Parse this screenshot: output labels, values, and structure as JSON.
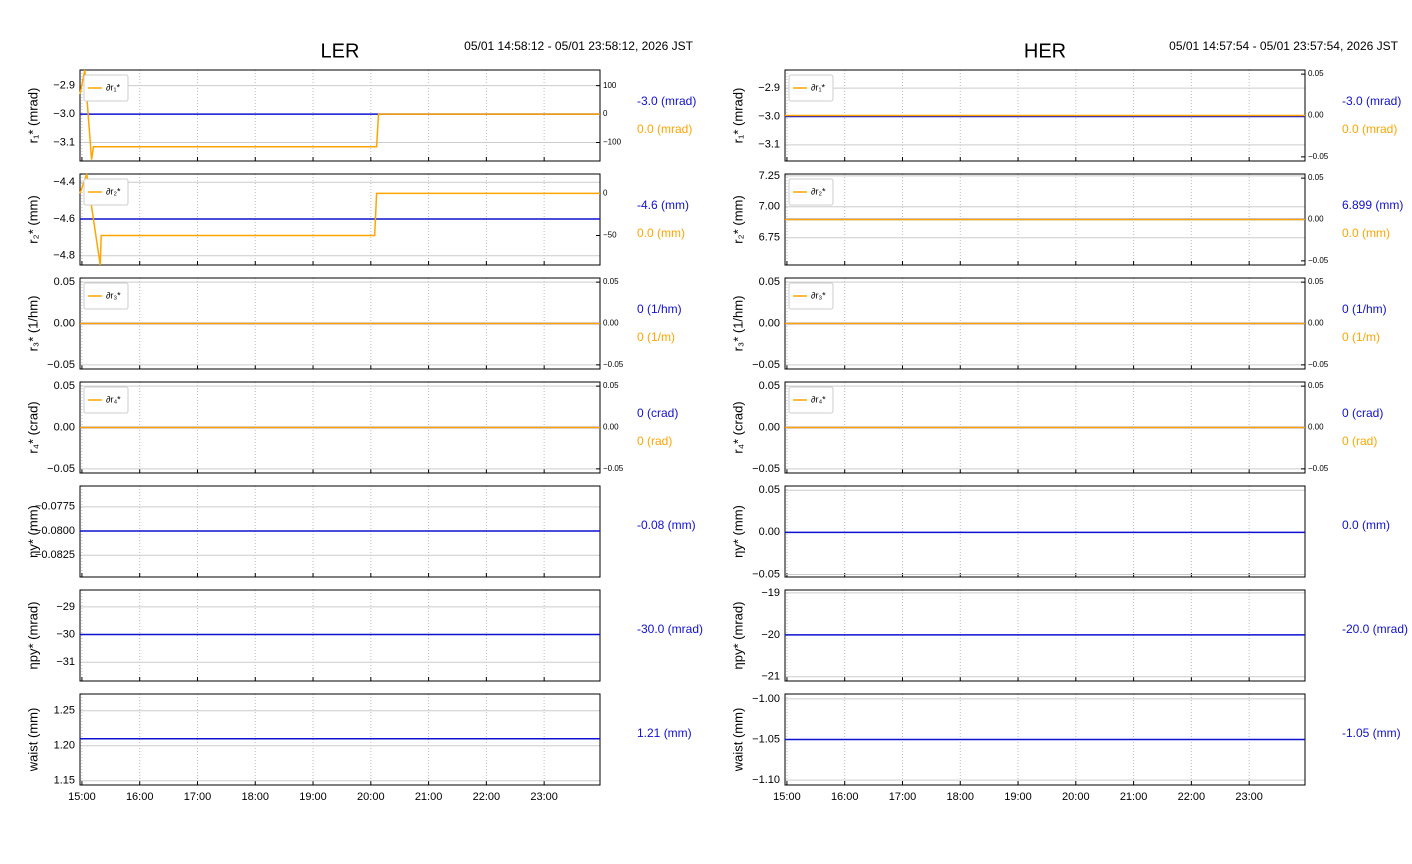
{
  "chart_data": [
    {
      "type": "line",
      "title": "LER",
      "subtitle": "05/01 14:58:12 - 05/01 23:58:12, 2026 JST",
      "xlim": [
        "14:58",
        "23:58"
      ],
      "xticks": [
        "15:00",
        "16:00",
        "17:00",
        "18:00",
        "19:00",
        "20:00",
        "21:00",
        "22:00",
        "23:00"
      ],
      "grid": true,
      "legend": "upper left",
      "panels": [
        {
          "ylabel": "r₁* (mrad)",
          "ylim": [
            -3.165,
            -2.845
          ],
          "yticks": [
            {
              "value": -3.1,
              "label": "−3.1"
            },
            {
              "value": -3.0,
              "label": "−3.0"
            },
            {
              "value": -2.9,
              "label": "−2.9"
            }
          ],
          "y2lim": [
            -165,
            155
          ],
          "y2ticks": [
            {
              "value": -100,
              "label": "−100"
            },
            0,
            100
          ],
          "series": [
            {
              "color": "#1010d0",
              "x": [
                "14:58",
                "23:58"
              ],
              "values": [
                -3.0,
                -3.0
              ]
            },
            {
              "name": "∂r₁*",
              "color": "#ffa500",
              "axis": "y2",
              "x": [
                "14:58",
                "15:03",
                "15:10",
                "15:12",
                "20:06",
                "20:08",
                "23:58"
              ],
              "values": [
                70,
                155,
                -160,
                -115,
                -115,
                0,
                0
              ]
            }
          ],
          "annotations": [
            {
              "text": "-3.0 (mrad)",
              "color": "#1010d0"
            },
            {
              "text": "0.0 (mrad)",
              "color": "#ffa500"
            }
          ]
        },
        {
          "ylabel": "r₂* (mm)",
          "ylim": [
            -4.85,
            -4.355
          ],
          "yticks": [
            {
              "value": -4.8,
              "label": "−4.8"
            },
            {
              "value": -4.6,
              "label": "−4.6"
            },
            {
              "value": -4.4,
              "label": "−4.4"
            }
          ],
          "y2lim": [
            -85,
            23
          ],
          "y2ticks": [
            {
              "value": -50,
              "label": "−50"
            },
            0
          ],
          "series": [
            {
              "color": "#1010d0",
              "x": [
                "14:58",
                "23:58"
              ],
              "values": [
                -4.6,
                -4.6
              ]
            },
            {
              "name": "∂r₂*",
              "color": "#ffa500",
              "axis": "y2",
              "x": [
                "14:58",
                "15:05",
                "15:19",
                "15:20",
                "20:04",
                "20:06",
                "23:58"
              ],
              "values": [
                0,
                23,
                -85,
                -50,
                -50,
                0,
                0
              ]
            }
          ],
          "annotations": [
            {
              "text": "-4.6 (mm)",
              "color": "#1010d0"
            },
            {
              "text": "0.0 (mm)",
              "color": "#ffa500"
            }
          ]
        },
        {
          "ylabel": "r₃* (1/hm)",
          "ylim": [
            -0.055,
            0.055
          ],
          "yticks": [
            {
              "value": -0.05,
              "label": "−0.05"
            },
            {
              "value": 0,
              "label": "0.00"
            },
            0.05
          ],
          "y2lim": [
            -0.055,
            0.055
          ],
          "y2ticks": [
            {
              "value": -0.05,
              "label": "−0.05"
            },
            {
              "value": 0,
              "label": "0.00"
            },
            0.05
          ],
          "series": [
            {
              "color": "#1010d0",
              "x": [
                "14:58",
                "23:58"
              ],
              "values": [
                0,
                0
              ]
            },
            {
              "name": "∂r₃*",
              "color": "#ffa500",
              "axis": "y2",
              "x": [
                "14:58",
                "23:58"
              ],
              "values": [
                0,
                0
              ]
            }
          ],
          "annotations": [
            {
              "text": "0 (1/hm)",
              "color": "#1010d0"
            },
            {
              "text": "0 (1/m)",
              "color": "#ffa500"
            }
          ]
        },
        {
          "ylabel": "r₄* (crad)",
          "ylim": [
            -0.055,
            0.055
          ],
          "yticks": [
            {
              "value": -0.05,
              "label": "−0.05"
            },
            {
              "value": 0,
              "label": "0.00"
            },
            0.05
          ],
          "y2lim": [
            -0.055,
            0.055
          ],
          "y2ticks": [
            {
              "value": -0.05,
              "label": "−0.05"
            },
            {
              "value": 0,
              "label": "0.00"
            },
            0.05
          ],
          "series": [
            {
              "color": "#1010d0",
              "x": [
                "14:58",
                "23:58"
              ],
              "values": [
                0,
                0
              ]
            },
            {
              "name": "∂r₄*",
              "color": "#ffa500",
              "axis": "y2",
              "x": [
                "14:58",
                "23:58"
              ],
              "values": [
                0,
                0
              ]
            }
          ],
          "annotations": [
            {
              "text": "0 (crad)",
              "color": "#1010d0"
            },
            {
              "text": "0 (rad)",
              "color": "#ffa500"
            }
          ]
        },
        {
          "ylabel": "ηy* (mm)",
          "ylim": [
            -0.08475,
            -0.07535
          ],
          "yticks": [
            {
              "value": -0.0825,
              "label": "−0.0825"
            },
            {
              "value": -0.08,
              "label": "−0.0800"
            },
            {
              "value": -0.0775,
              "label": "−0.0775"
            }
          ],
          "series": [
            {
              "color": "#1010d0",
              "x": [
                "14:58",
                "23:58"
              ],
              "values": [
                -0.08,
                -0.08
              ]
            }
          ],
          "annotations": [
            {
              "text": "-0.08 (mm)",
              "color": "#1010d0"
            }
          ]
        },
        {
          "ylabel": "ηpy* (mrad)",
          "ylim": [
            -31.68,
            -28.39
          ],
          "yticks": [
            {
              "value": -31,
              "label": "−31"
            },
            {
              "value": -30,
              "label": "−30"
            },
            {
              "value": -29,
              "label": "−29"
            }
          ],
          "series": [
            {
              "color": "#1010d0",
              "x": [
                "14:58",
                "23:58"
              ],
              "values": [
                -30.0,
                -30.0
              ]
            }
          ],
          "annotations": [
            {
              "text": "-30.0 (mrad)",
              "color": "#1010d0"
            }
          ]
        },
        {
          "ylabel": "waist (mm)",
          "ylim": [
            1.144,
            1.274
          ],
          "yticks": [
            1.15,
            {
              "value": 1.2,
              "label": "1.20"
            },
            1.25
          ],
          "series": [
            {
              "color": "#1010d0",
              "x": [
                "14:58",
                "23:58"
              ],
              "values": [
                1.21,
                1.21
              ]
            }
          ],
          "annotations": [
            {
              "text": "1.21 (mm)",
              "color": "#1010d0"
            }
          ]
        }
      ]
    },
    {
      "type": "line",
      "title": "HER",
      "subtitle": "05/01 14:57:54 - 05/01 23:57:54, 2026 JST",
      "xlim": [
        "14:58",
        "23:58"
      ],
      "xticks": [
        "15:00",
        "16:00",
        "17:00",
        "18:00",
        "19:00",
        "20:00",
        "21:00",
        "22:00",
        "23:00"
      ],
      "grid": true,
      "legend": "upper left",
      "panels": [
        {
          "ylabel": "r₁* (mrad)",
          "ylim": [
            -3.157,
            -2.836
          ],
          "yticks": [
            {
              "value": -3.1,
              "label": "−3.1"
            },
            {
              "value": -3.0,
              "label": "−3.0"
            },
            {
              "value": -2.9,
              "label": "−2.9"
            }
          ],
          "y2lim": [
            -0.055,
            0.055
          ],
          "y2ticks": [
            {
              "value": -0.05,
              "label": "−0.05"
            },
            {
              "value": 0,
              "label": "0.00"
            },
            0.05
          ],
          "series": [
            {
              "color": "#1010d0",
              "x": [
                "14:58",
                "23:58"
              ],
              "values": [
                -3.0,
                -3.0
              ]
            },
            {
              "name": "∂r₁*",
              "color": "#ffa500",
              "axis": "y2",
              "x": [
                "14:58",
                "23:58"
              ],
              "values": [
                0,
                0
              ]
            }
          ],
          "annotations": [
            {
              "text": "-3.0 (mrad)",
              "color": "#1010d0"
            },
            {
              "text": "0.0 (mrad)",
              "color": "#ffa500"
            }
          ]
        },
        {
          "ylabel": "r₂* (mm)",
          "ylim": [
            6.53,
            7.265
          ],
          "yticks": [
            6.75,
            {
              "value": 7,
              "label": "7.00"
            },
            7.25
          ],
          "y2lim": [
            -0.055,
            0.055
          ],
          "y2ticks": [
            {
              "value": -0.05,
              "label": "−0.05"
            },
            {
              "value": 0,
              "label": "0.00"
            },
            0.05
          ],
          "series": [
            {
              "color": "#1010d0",
              "x": [
                "14:58",
                "23:58"
              ],
              "values": [
                6.899,
                6.899
              ]
            },
            {
              "name": "∂r₂*",
              "color": "#ffa500",
              "axis": "y2",
              "x": [
                "14:58",
                "23:58"
              ],
              "values": [
                0,
                0
              ]
            }
          ],
          "annotations": [
            {
              "text": "6.899 (mm)",
              "color": "#1010d0"
            },
            {
              "text": "0.0 (mm)",
              "color": "#ffa500"
            }
          ]
        },
        {
          "ylabel": "r₃* (1/hm)",
          "ylim": [
            -0.055,
            0.055
          ],
          "yticks": [
            {
              "value": -0.05,
              "label": "−0.05"
            },
            {
              "value": 0,
              "label": "0.00"
            },
            0.05
          ],
          "y2lim": [
            -0.055,
            0.055
          ],
          "y2ticks": [
            {
              "value": -0.05,
              "label": "−0.05"
            },
            {
              "value": 0,
              "label": "0.00"
            },
            0.05
          ],
          "series": [
            {
              "color": "#1010d0",
              "x": [
                "14:58",
                "23:58"
              ],
              "values": [
                0,
                0
              ]
            },
            {
              "name": "∂r₃*",
              "color": "#ffa500",
              "axis": "y2",
              "x": [
                "14:58",
                "23:58"
              ],
              "values": [
                0,
                0
              ]
            }
          ],
          "annotations": [
            {
              "text": "0 (1/hm)",
              "color": "#1010d0"
            },
            {
              "text": "0 (1/m)",
              "color": "#ffa500"
            }
          ]
        },
        {
          "ylabel": "r₄* (crad)",
          "ylim": [
            -0.055,
            0.055
          ],
          "yticks": [
            {
              "value": -0.05,
              "label": "−0.05"
            },
            {
              "value": 0,
              "label": "0.00"
            },
            0.05
          ],
          "y2lim": [
            -0.055,
            0.055
          ],
          "y2ticks": [
            {
              "value": -0.05,
              "label": "−0.05"
            },
            {
              "value": 0,
              "label": "0.00"
            },
            0.05
          ],
          "series": [
            {
              "color": "#1010d0",
              "x": [
                "14:58",
                "23:58"
              ],
              "values": [
                0,
                0
              ]
            },
            {
              "name": "∂r₄*",
              "color": "#ffa500",
              "axis": "y2",
              "x": [
                "14:58",
                "23:58"
              ],
              "values": [
                0,
                0
              ]
            }
          ],
          "annotations": [
            {
              "text": "0 (crad)",
              "color": "#1010d0"
            },
            {
              "text": "0 (rad)",
              "color": "#ffa500"
            }
          ]
        },
        {
          "ylabel": "ηy* (mm)",
          "ylim": [
            -0.053,
            0.055
          ],
          "yticks": [
            {
              "value": -0.05,
              "label": "−0.05"
            },
            {
              "value": 0,
              "label": "0.00"
            },
            0.05
          ],
          "series": [
            {
              "color": "#1010d0",
              "x": [
                "14:58",
                "23:58"
              ],
              "values": [
                0.0,
                0.0
              ]
            }
          ],
          "annotations": [
            {
              "text": "0.0 (mm)",
              "color": "#1010d0"
            }
          ]
        },
        {
          "ylabel": "ηpy* (mrad)",
          "ylim": [
            -21.1,
            -18.93
          ],
          "yticks": [
            {
              "value": -21,
              "label": "−21"
            },
            {
              "value": -20,
              "label": "−20"
            },
            {
              "value": -19,
              "label": "−19"
            }
          ],
          "series": [
            {
              "color": "#1010d0",
              "x": [
                "14:58",
                "23:58"
              ],
              "values": [
                -20.0,
                -20.0
              ]
            }
          ],
          "annotations": [
            {
              "text": "-20.0 (mrad)",
              "color": "#1010d0"
            }
          ]
        },
        {
          "ylabel": "waist (mm)",
          "ylim": [
            -1.106,
            -0.994
          ],
          "yticks": [
            {
              "value": -1.1,
              "label": "−1.10"
            },
            {
              "value": -1.05,
              "label": "−1.05"
            },
            {
              "value": -1,
              "label": "−1.00"
            }
          ],
          "series": [
            {
              "color": "#1010d0",
              "x": [
                "14:58",
                "23:58"
              ],
              "values": [
                -1.05,
                -1.05
              ]
            }
          ],
          "annotations": [
            {
              "text": "-1.05 (mm)",
              "color": "#1010d0"
            }
          ]
        }
      ]
    }
  ]
}
